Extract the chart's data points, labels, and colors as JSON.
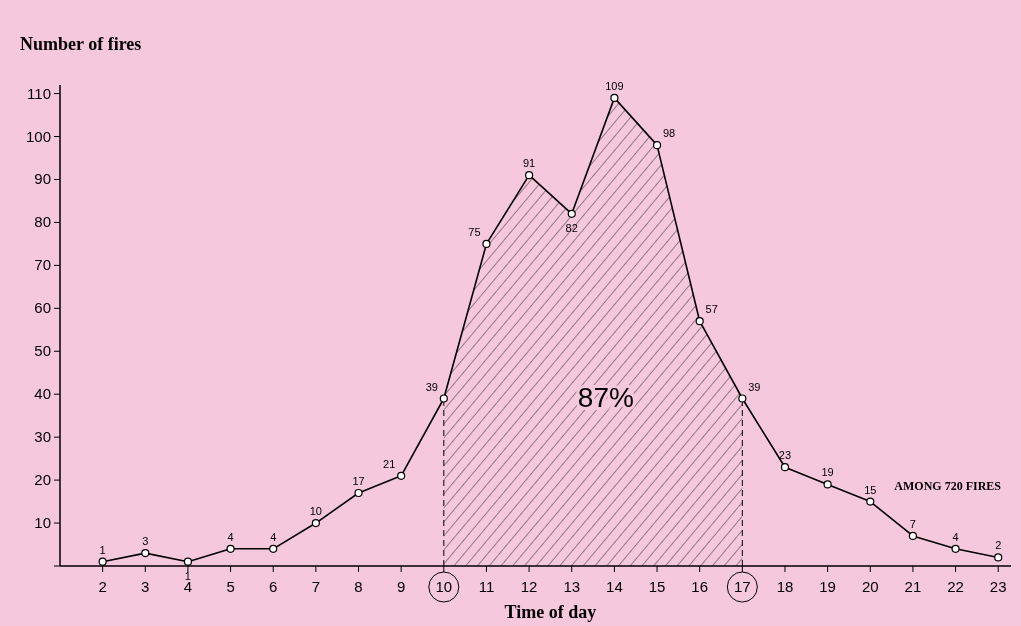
{
  "chart_data": {
    "type": "line",
    "ylabel": "Number of fires",
    "xlabel": "Time of day",
    "x": [
      2,
      3,
      4,
      5,
      6,
      7,
      8,
      9,
      10,
      11,
      12,
      13,
      14,
      15,
      16,
      17,
      18,
      19,
      20,
      21,
      22,
      23
    ],
    "series": [
      {
        "type": "area",
        "color": "#000000",
        "x": [
          10,
          11,
          12,
          13,
          14,
          15,
          16,
          17
        ],
        "values": [
          39,
          75,
          91,
          82,
          109,
          98,
          57,
          39
        ]
      },
      {
        "color": "#000000",
        "values": [
          1,
          3,
          1,
          4,
          4,
          10,
          17,
          21,
          39,
          75,
          91,
          82,
          109,
          98,
          57,
          39,
          23,
          19,
          15,
          7,
          4,
          2
        ],
        "value_labels": [
          "1",
          "3",
          "1",
          "4",
          "4",
          "10",
          "17",
          "21",
          "39",
          "75",
          "91",
          "82",
          "109",
          "98",
          "57",
          "39",
          "23",
          "19",
          "15",
          "7",
          "4",
          "2"
        ]
      }
    ],
    "xlim": [
      1,
      23.3
    ],
    "ylim": [
      0,
      112
    ],
    "xticks": [
      2,
      3,
      4,
      5,
      6,
      7,
      8,
      9,
      10,
      11,
      12,
      13,
      14,
      15,
      16,
      17,
      18,
      19,
      20,
      21,
      22,
      23
    ],
    "yticks": [
      {
        "value": 0,
        "label": null
      },
      10,
      20,
      30,
      40,
      50,
      60,
      70,
      80,
      90,
      100,
      110
    ],
    "annotations": [
      "87%",
      "AMONG 720 FIRES"
    ],
    "marker": "circle",
    "grid": false,
    "legend": false
  }
}
